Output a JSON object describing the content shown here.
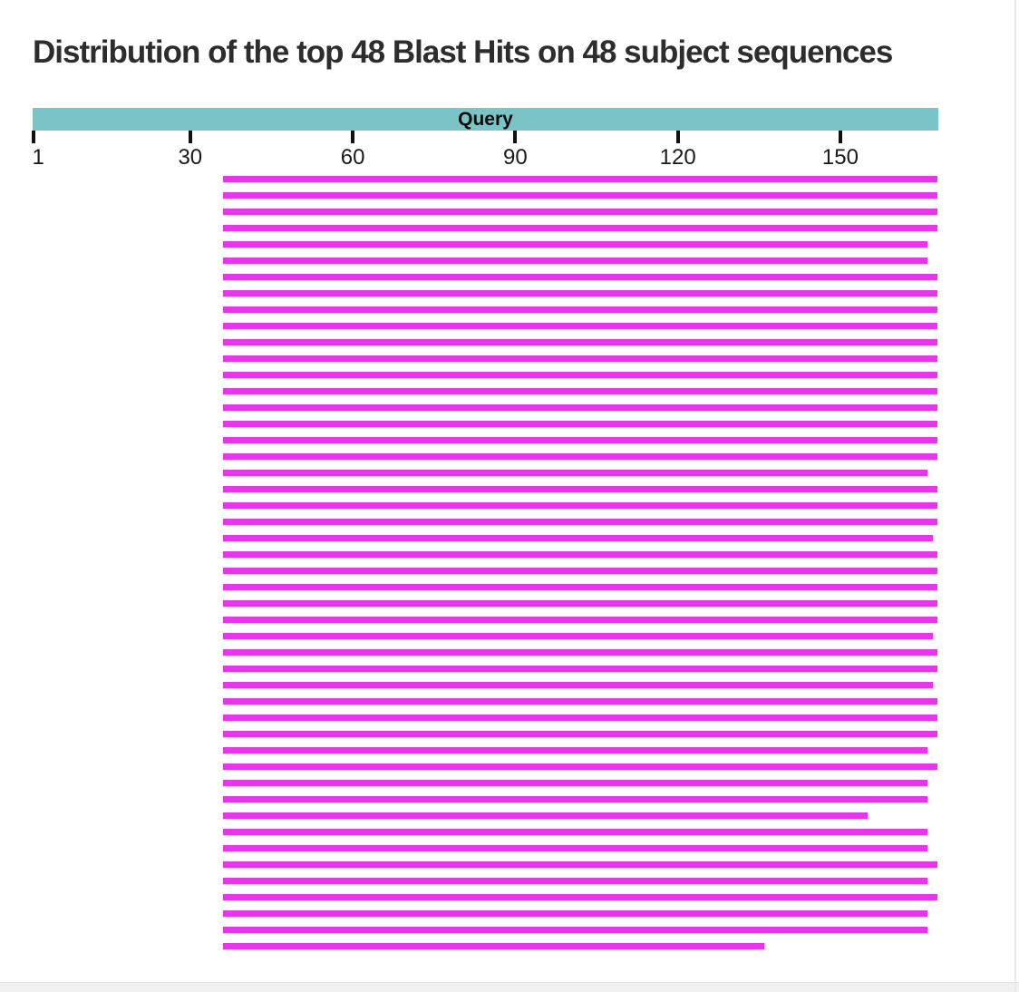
{
  "chart_data": {
    "type": "bar",
    "orientation": "horizontal-span",
    "title": "Distribution of the top 48 Blast Hits on 48 subject sequences",
    "query_track_label": "Query",
    "hit_count": 48,
    "subject_sequence_count": 48,
    "axis": {
      "tick_values": [
        1,
        30,
        60,
        90,
        120,
        150
      ],
      "min": 1,
      "max": 168,
      "grid": false
    },
    "query_span": {
      "start": 1,
      "end": 168
    },
    "colors": {
      "query_track": "#7ac4c8",
      "hit_bar": "#e635ea",
      "axis_tick": "#111111",
      "title_text": "#2d2d2d"
    },
    "hits": [
      {
        "start": 36,
        "end": 168
      },
      {
        "start": 36,
        "end": 168
      },
      {
        "start": 36,
        "end": 168
      },
      {
        "start": 36,
        "end": 168
      },
      {
        "start": 36,
        "end": 166
      },
      {
        "start": 36,
        "end": 166
      },
      {
        "start": 36,
        "end": 168
      },
      {
        "start": 36,
        "end": 168
      },
      {
        "start": 36,
        "end": 168
      },
      {
        "start": 36,
        "end": 168
      },
      {
        "start": 36,
        "end": 168
      },
      {
        "start": 36,
        "end": 168
      },
      {
        "start": 36,
        "end": 168
      },
      {
        "start": 36,
        "end": 168
      },
      {
        "start": 36,
        "end": 168
      },
      {
        "start": 36,
        "end": 168
      },
      {
        "start": 36,
        "end": 168
      },
      {
        "start": 36,
        "end": 168
      },
      {
        "start": 36,
        "end": 166
      },
      {
        "start": 36,
        "end": 168
      },
      {
        "start": 36,
        "end": 168
      },
      {
        "start": 36,
        "end": 168
      },
      {
        "start": 36,
        "end": 167
      },
      {
        "start": 36,
        "end": 168
      },
      {
        "start": 36,
        "end": 168
      },
      {
        "start": 36,
        "end": 168
      },
      {
        "start": 36,
        "end": 168
      },
      {
        "start": 36,
        "end": 168
      },
      {
        "start": 36,
        "end": 167
      },
      {
        "start": 36,
        "end": 168
      },
      {
        "start": 36,
        "end": 168
      },
      {
        "start": 36,
        "end": 167
      },
      {
        "start": 36,
        "end": 168
      },
      {
        "start": 36,
        "end": 168
      },
      {
        "start": 36,
        "end": 168
      },
      {
        "start": 36,
        "end": 166
      },
      {
        "start": 36,
        "end": 168
      },
      {
        "start": 36,
        "end": 166
      },
      {
        "start": 36,
        "end": 166
      },
      {
        "start": 36,
        "end": 155
      },
      {
        "start": 36,
        "end": 166
      },
      {
        "start": 36,
        "end": 166
      },
      {
        "start": 36,
        "end": 168
      },
      {
        "start": 36,
        "end": 166
      },
      {
        "start": 36,
        "end": 168
      },
      {
        "start": 36,
        "end": 166
      },
      {
        "start": 36,
        "end": 166
      },
      {
        "start": 36,
        "end": 136
      }
    ]
  }
}
